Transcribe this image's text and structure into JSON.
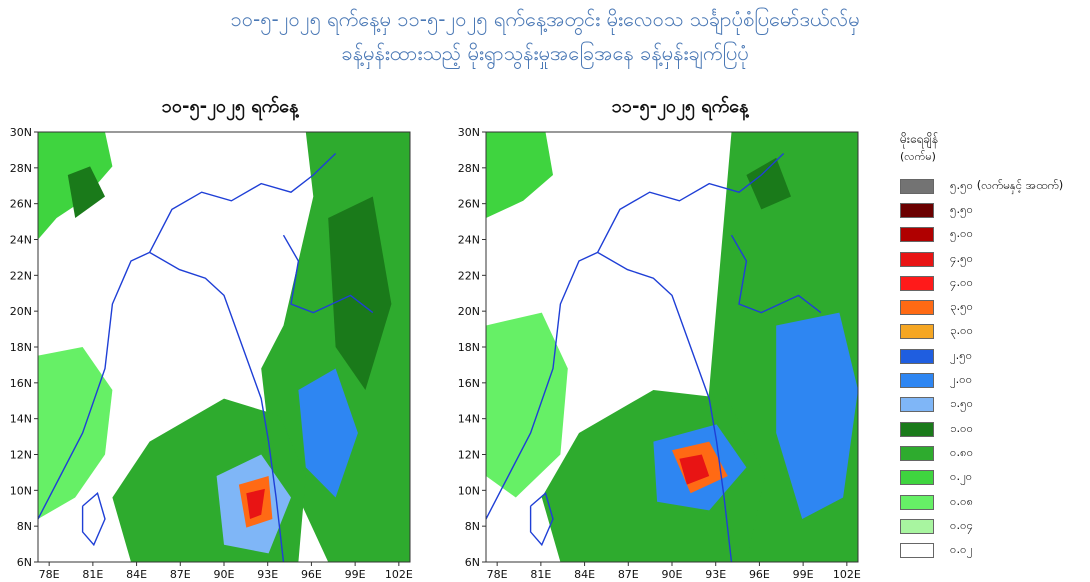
{
  "title": {
    "line1": "၁၀-၅-၂၀၂၅ ရက်နေ့မှ ၁၁-၅-၂၀၂၅ ရက်နေ့အတွင်း မိုးလေဝသ သင်္ချာပုံစံပြမော်ဒယ်လ်မှ",
    "line2": "ခန့်မှန်းထားသည့် မိုးရွာသွန်းမှုအခြေအနေ ခန့်မှန်းချက်ပြပုံ"
  },
  "maps": [
    {
      "heading": "၁၀-၅-၂၀၂၅ ရက်နေ့"
    },
    {
      "heading": "၁၁-၅-၂၀၂၅ ရက်နေ့"
    }
  ],
  "axes": {
    "lat_labels": [
      "30N",
      "28N",
      "26N",
      "24N",
      "22N",
      "20N",
      "18N",
      "16N",
      "14N",
      "12N",
      "10N",
      "8N",
      "6N"
    ],
    "lon_labels": [
      "78E",
      "81E",
      "84E",
      "87E",
      "90E",
      "93E",
      "96E",
      "99E",
      "102E"
    ]
  },
  "legend": {
    "title": "မိုးရေချိန်",
    "unit": "(လက်မ)",
    "items": [
      {
        "label": "၅.၅၀ (လက်မနှင့် အထက်)",
        "color": "#737373"
      },
      {
        "label": "၅.၅၀",
        "color": "#6b0000"
      },
      {
        "label": "၅.၀၀",
        "color": "#b00000"
      },
      {
        "label": "၄.၅၀",
        "color": "#e81414"
      },
      {
        "label": "၄.၀၀",
        "color": "#ff1a1a"
      },
      {
        "label": "၃.၅၀",
        "color": "#ff6a14"
      },
      {
        "label": "၃.၀၀",
        "color": "#f5a623"
      },
      {
        "label": "၂.၅၀",
        "color": "#1f5ee0"
      },
      {
        "label": "၂.၀၀",
        "color": "#2e86f2"
      },
      {
        "label": "၁.၅၀",
        "color": "#7fb6f7"
      },
      {
        "label": "၁.၀၀",
        "color": "#1a7a1a"
      },
      {
        "label": "၀.၈၀",
        "color": "#2eab2e"
      },
      {
        "label": "၀.၂၀",
        "color": "#3fd43f"
      },
      {
        "label": "၀.၀၈",
        "color": "#66f066"
      },
      {
        "label": "၀.၀၄",
        "color": "#a8f5a0"
      },
      {
        "label": "၀.၀၂",
        "color": "#ffffff"
      }
    ]
  }
}
